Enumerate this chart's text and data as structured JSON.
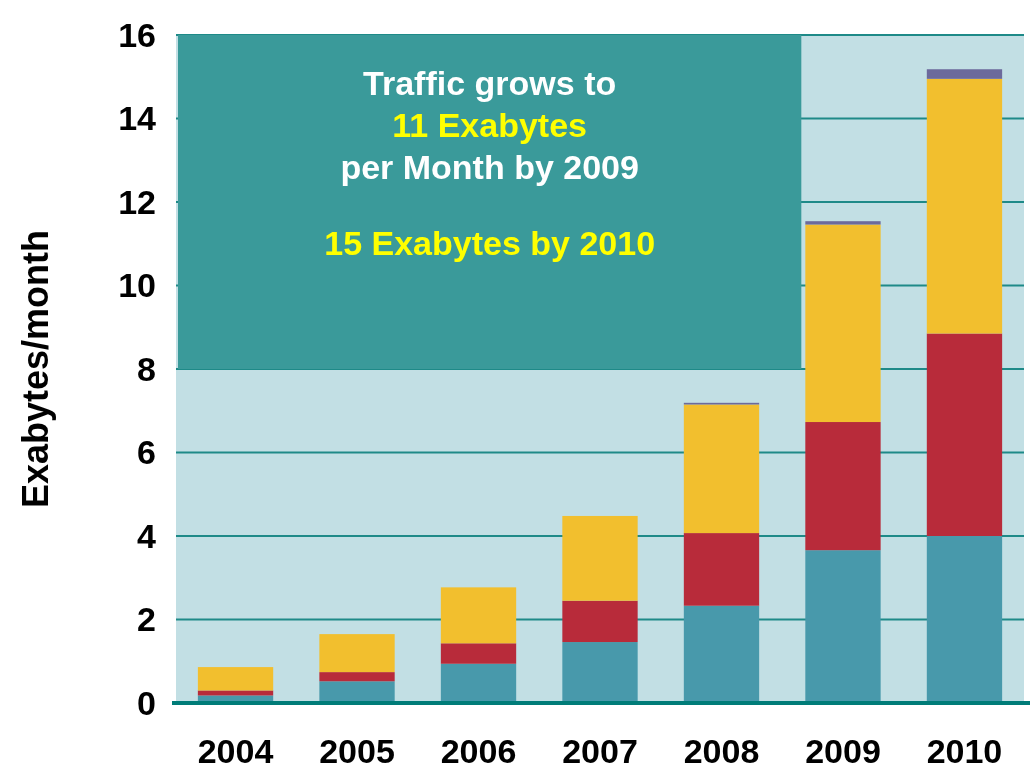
{
  "chart_data": {
    "type": "bar",
    "stacked": true,
    "ylabel": "Exabytes/month",
    "categories": [
      "2004",
      "2005",
      "2006",
      "2007",
      "2008",
      "2009",
      "2010"
    ],
    "series": [
      {
        "color": "#4899ab",
        "values": [
          0.18,
          0.52,
          0.94,
          1.46,
          2.33,
          3.66,
          4.0
        ]
      },
      {
        "color": "#b82b3a",
        "values": [
          0.12,
          0.22,
          0.49,
          0.99,
          1.74,
          3.07,
          4.85
        ]
      },
      {
        "color": "#f2bf2e",
        "values": [
          0.56,
          0.91,
          1.34,
          2.03,
          3.08,
          4.73,
          6.1
        ]
      },
      {
        "color": "#6c6a9c",
        "values": [
          0,
          0,
          0,
          0,
          0.04,
          0.08,
          0.23
        ]
      }
    ],
    "ylim": [
      0,
      16
    ],
    "yticks": [
      0,
      2,
      4,
      6,
      8,
      10,
      12,
      14,
      16
    ],
    "grid": "y",
    "annotations": [
      "Traffic grows to",
      "11 Exabytes",
      "per Month by 2009",
      "15 Exabytes by 2010"
    ]
  }
}
